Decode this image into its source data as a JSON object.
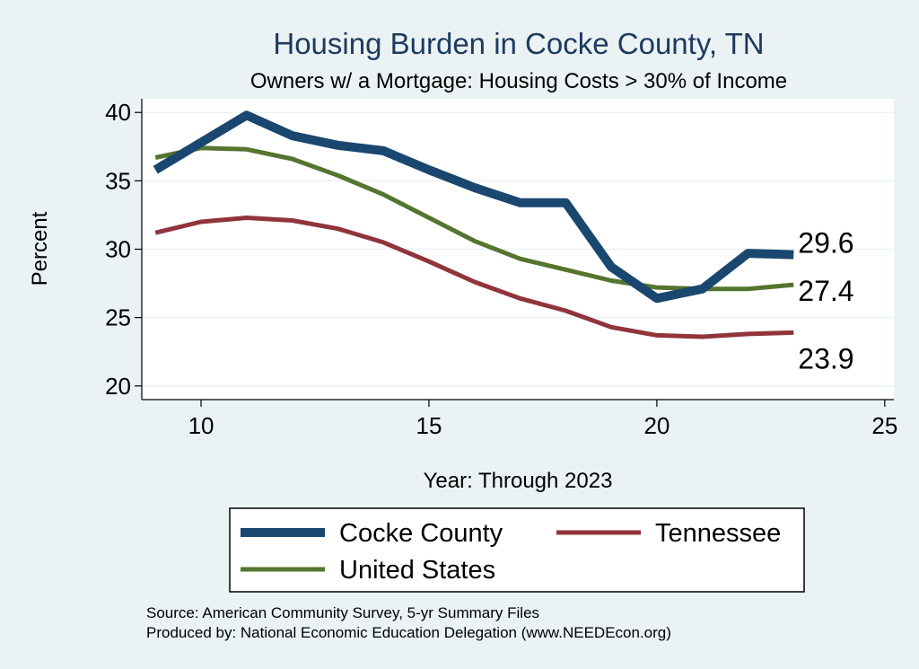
{
  "chart_data": {
    "type": "line",
    "title": "Housing Burden in Cocke County, TN",
    "subtitle": "Owners w/ a Mortgage: Housing Costs > 30% of Income",
    "xlabel": "Year: Through 2023",
    "ylabel": "Percent",
    "xlim": [
      8.7,
      25.2
    ],
    "ylim": [
      19,
      41
    ],
    "x_ticks": [
      10,
      15,
      20,
      25
    ],
    "y_ticks": [
      20,
      25,
      30,
      35,
      40
    ],
    "grid": true,
    "legend_position": "bottom",
    "x": [
      9,
      10,
      11,
      12,
      13,
      14,
      15,
      16,
      17,
      18,
      19,
      20,
      21,
      22,
      23
    ],
    "series": [
      {
        "name": "Cocke County",
        "color": "#1a476f",
        "values": [
          35.8,
          37.8,
          39.8,
          38.3,
          37.6,
          37.2,
          35.8,
          34.5,
          33.4,
          33.4,
          28.7,
          26.4,
          27.1,
          29.7,
          29.6
        ],
        "end_label": "29.6"
      },
      {
        "name": "Tennessee",
        "color": "#90353b",
        "values": [
          31.2,
          32.0,
          32.3,
          32.1,
          31.5,
          30.5,
          29.1,
          27.6,
          26.4,
          25.5,
          24.3,
          23.7,
          23.6,
          23.8,
          23.9
        ],
        "end_label": "23.9"
      },
      {
        "name": "United States",
        "color": "#55752f",
        "values": [
          36.7,
          37.4,
          37.3,
          36.6,
          35.4,
          34.0,
          32.3,
          30.6,
          29.3,
          28.5,
          27.7,
          27.2,
          27.1,
          27.1,
          27.4
        ],
        "end_label": "27.4"
      }
    ]
  },
  "source_line_1": "Source: American Community Survey, 5-yr Summary Files",
  "source_line_2": "Produced by: National Economic Education Delegation (www.NEEDEcon.org)"
}
